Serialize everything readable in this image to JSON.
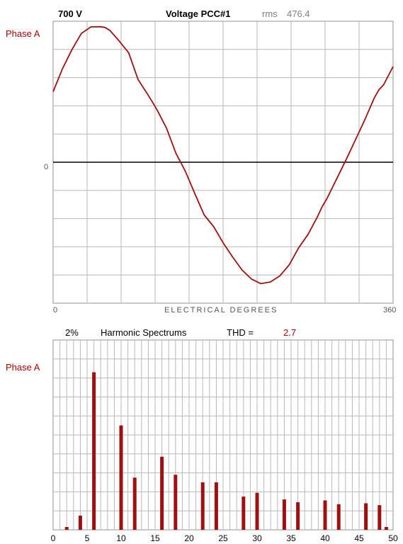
{
  "waveform": {
    "scale_label": "700  V",
    "title": "Voltage PCC#1",
    "rms_label": "rms",
    "rms_value": "476.4",
    "phase_label": "Phase A",
    "zero_label": "0",
    "x_start_label": "0",
    "x_end_label": "360",
    "axis_label": "ELECTRICAL DEGREES"
  },
  "spectrum": {
    "scale_label": "2%",
    "title": "Harmonic Spectrums",
    "thd_label": "THD =",
    "thd_value": "2.7",
    "phase_label": "Phase A"
  },
  "colors": {
    "trace": "#a01010",
    "grid": "#b8b8b8",
    "zero_line": "#000000",
    "label_red": "#b00000"
  },
  "chart_data": [
    {
      "type": "line",
      "title": "Voltage PCC#1",
      "xlabel": "ELECTRICAL DEGREES",
      "ylabel": "Phase A",
      "xlim": [
        0,
        360
      ],
      "ylim": [
        -700,
        700
      ],
      "x_ticks": [
        "0",
        "360"
      ],
      "grid": true,
      "series": [
        {
          "x": [
            0,
            10,
            20,
            30,
            40,
            50,
            55,
            60,
            70,
            80,
            90,
            100,
            105,
            110,
            120,
            130,
            140,
            150,
            160,
            170,
            180,
            190,
            200,
            210,
            220,
            230,
            240,
            250,
            260,
            270,
            280,
            285,
            290,
            300,
            310,
            320,
            330,
            340,
            345,
            350,
            360
          ],
          "y": [
            350,
            465,
            560,
            640,
            672,
            673,
            669,
            655,
            602,
            543,
            410,
            338,
            300,
            260,
            170,
            45,
            -45,
            -155,
            -262,
            -320,
            -400,
            -470,
            -535,
            -580,
            -603,
            -595,
            -565,
            -510,
            -425,
            -358,
            -270,
            -220,
            -180,
            -85,
            10,
            110,
            210,
            318,
            360,
            385,
            475
          ]
        }
      ]
    },
    {
      "type": "bar",
      "title": "Harmonic Spectrums",
      "ylabel": "Phase A",
      "xlim": [
        0,
        50
      ],
      "ylim": [
        0,
        2
      ],
      "x_ticks": [
        0,
        5,
        10,
        15,
        20,
        25,
        30,
        35,
        40,
        45,
        50
      ],
      "grid": true,
      "harmonics": [
        2,
        4,
        6,
        10,
        12,
        16,
        18,
        22,
        24,
        28,
        30,
        34,
        36,
        40,
        42,
        46,
        48,
        49
      ],
      "values": [
        0.03,
        0.15,
        1.66,
        1.1,
        0.55,
        0.77,
        0.58,
        0.5,
        0.5,
        0.35,
        0.39,
        0.32,
        0.29,
        0.31,
        0.27,
        0.28,
        0.26,
        0.03
      ]
    }
  ]
}
